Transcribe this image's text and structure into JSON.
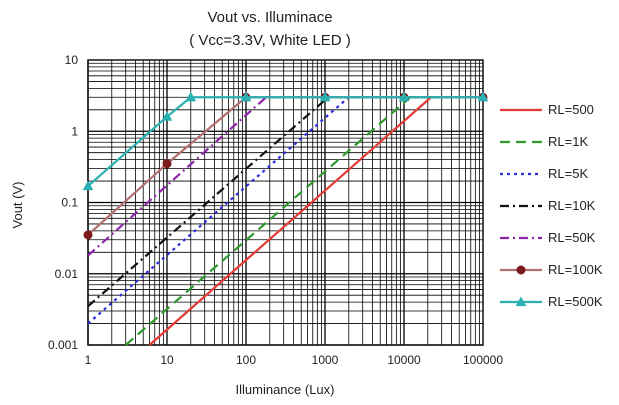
{
  "chart_data": {
    "type": "line",
    "title": "Vout vs. Illuminace",
    "subtitle": "( Vcc=3.3V, White LED )",
    "xlabel": "Illuminance (Lux)",
    "ylabel": "Vout (V)",
    "x_scale": "log",
    "y_scale": "log",
    "xlim": [
      1,
      100000
    ],
    "ylim": [
      0.001,
      10
    ],
    "grid": true,
    "legend_position": "right",
    "x_ticks": [
      "1",
      "10",
      "100",
      "1000",
      "10000",
      "100000"
    ],
    "y_ticks": [
      "10",
      "1",
      "0.1",
      "0.01",
      "0.001"
    ],
    "series": [
      {
        "name": "RL=500",
        "color": "#e53935",
        "dash": "solid",
        "marker": "none",
        "points": [
          [
            6,
            0.001
          ],
          [
            22000,
            3.0
          ],
          [
            100000,
            3.0
          ]
        ]
      },
      {
        "name": "RL=1K",
        "color": "#2e9b2e",
        "dash": "long-dash",
        "marker": "none",
        "points": [
          [
            3,
            0.001
          ],
          [
            12000,
            3.0
          ],
          [
            100000,
            3.0
          ]
        ]
      },
      {
        "name": "RL=5K",
        "color": "#2a2ae0",
        "dash": "dot",
        "marker": "none",
        "points": [
          [
            1,
            0.002
          ],
          [
            2000,
            3.0
          ],
          [
            100000,
            3.0
          ]
        ]
      },
      {
        "name": "RL=10K",
        "color": "#111111",
        "dash": "dash-dot",
        "marker": "none",
        "points": [
          [
            1,
            0.0035
          ],
          [
            1100,
            3.0
          ],
          [
            100000,
            3.0
          ]
        ]
      },
      {
        "name": "RL=50K",
        "color": "#8e24aa",
        "dash": "dash-dot",
        "marker": "none",
        "points": [
          [
            1,
            0.018
          ],
          [
            180,
            3.0
          ],
          [
            100000,
            3.0
          ]
        ]
      },
      {
        "name": "RL=100K",
        "color": "#b07070",
        "dash": "solid",
        "marker": "circle",
        "points": [
          [
            1,
            0.035
          ],
          [
            10,
            0.35
          ],
          [
            100,
            3.0
          ],
          [
            1000,
            3.0
          ],
          [
            10000,
            3.0
          ],
          [
            100000,
            3.0
          ]
        ]
      },
      {
        "name": "RL=500K",
        "color": "#2ab0b0",
        "dash": "solid",
        "marker": "triangle",
        "points": [
          [
            1,
            0.17
          ],
          [
            10,
            1.6
          ],
          [
            20,
            3.0
          ],
          [
            100,
            3.0
          ],
          [
            1000,
            3.0
          ],
          [
            10000,
            3.0
          ],
          [
            100000,
            3.0
          ]
        ]
      }
    ]
  }
}
